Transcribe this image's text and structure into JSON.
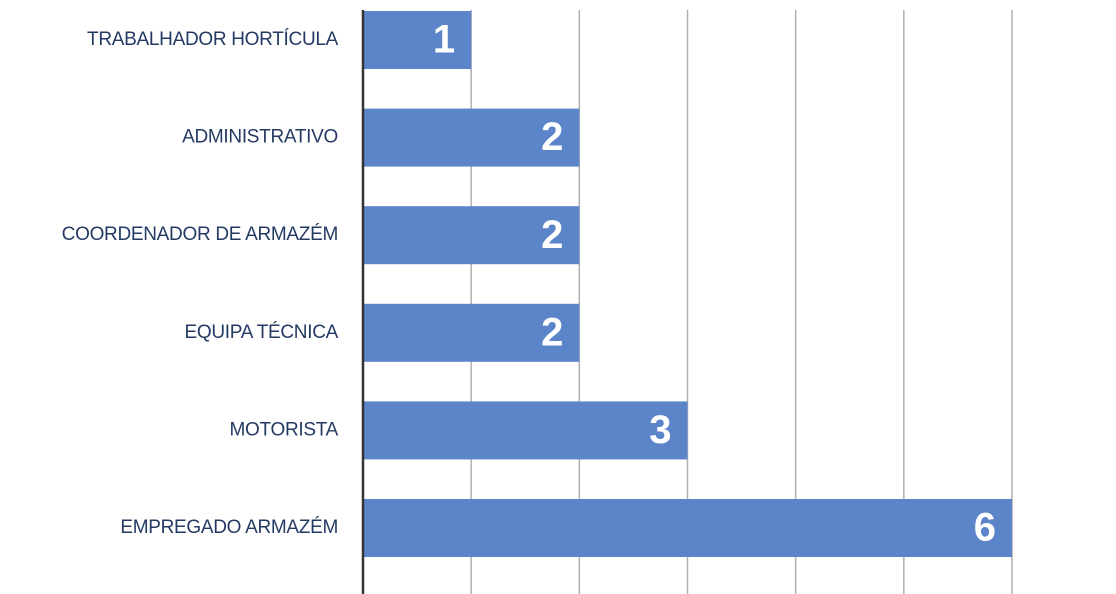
{
  "chart_data": {
    "type": "bar",
    "orientation": "horizontal",
    "categories": [
      "TRABALHADOR HORTÍCULA",
      "ADMINISTRATIVO",
      "COORDENADOR DE ARMAZÉM",
      "EQUIPA TÉCNICA",
      "MOTORISTA",
      "EMPREGADO ARMAZÉM"
    ],
    "values": [
      1,
      2,
      2,
      2,
      3,
      6
    ],
    "color": "#5b84c9",
    "xlim": [
      0,
      6
    ],
    "xticks": [
      0,
      1,
      2,
      3,
      4,
      5,
      6
    ],
    "grid": true
  }
}
